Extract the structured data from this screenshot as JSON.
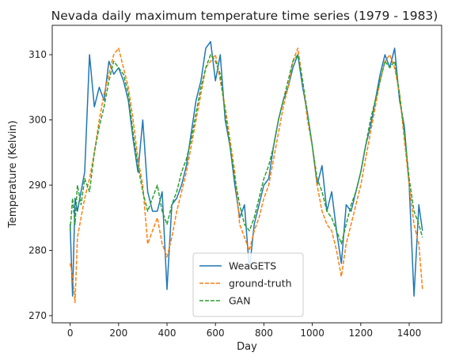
{
  "chart_data": {
    "type": "line",
    "title": "Nevada daily maximum temperature time series (1979 - 1983)",
    "xlabel": "Day",
    "ylabel": "Temperature (Kelvin)",
    "xlim": [
      -74,
      1534
    ],
    "ylim": [
      268.9,
      314.5
    ],
    "x_ticks": [
      0,
      200,
      400,
      600,
      800,
      1000,
      1200,
      1400
    ],
    "y_ticks": [
      270,
      280,
      290,
      300,
      310
    ],
    "grid": false,
    "legend_position": "lower-center",
    "series": [
      {
        "name": "WeaGETS",
        "color": "#1f77b4",
        "style": "solid",
        "x": [
          0,
          10,
          20,
          30,
          45,
          60,
          80,
          100,
          120,
          140,
          160,
          180,
          200,
          220,
          240,
          260,
          280,
          300,
          320,
          340,
          360,
          380,
          400,
          420,
          440,
          460,
          480,
          500,
          520,
          540,
          560,
          580,
          600,
          620,
          640,
          660,
          680,
          700,
          720,
          740,
          760,
          780,
          800,
          820,
          840,
          860,
          880,
          900,
          920,
          940,
          960,
          980,
          1000,
          1020,
          1040,
          1060,
          1080,
          1100,
          1120,
          1140,
          1160,
          1180,
          1200,
          1220,
          1240,
          1260,
          1280,
          1300,
          1320,
          1340,
          1360,
          1380,
          1400,
          1420,
          1440,
          1455
        ],
        "values": [
          284,
          273,
          288,
          286,
          289,
          292,
          310,
          302,
          305,
          303,
          309,
          307,
          308,
          306,
          303,
          297,
          292,
          300,
          289,
          286,
          286,
          289,
          274,
          287,
          288,
          290,
          293,
          298,
          303,
          306,
          311,
          312,
          306,
          310,
          300,
          296,
          290,
          285,
          287,
          277,
          284,
          287,
          290,
          291,
          296,
          300,
          303,
          305,
          308,
          310,
          305,
          301,
          296,
          290,
          293,
          286,
          289,
          283,
          278,
          287,
          286,
          289,
          292,
          296,
          299,
          303,
          307,
          310,
          308,
          311,
          303,
          299,
          290,
          273,
          287,
          283
        ]
      },
      {
        "name": "ground-truth",
        "color": "#ff7f0e",
        "style": "dashed",
        "x": [
          0,
          10,
          20,
          30,
          45,
          60,
          80,
          100,
          120,
          140,
          160,
          180,
          200,
          220,
          240,
          260,
          280,
          300,
          320,
          340,
          360,
          380,
          400,
          420,
          440,
          460,
          480,
          500,
          520,
          540,
          560,
          580,
          600,
          620,
          640,
          660,
          680,
          700,
          720,
          740,
          760,
          780,
          800,
          820,
          840,
          860,
          880,
          900,
          920,
          940,
          960,
          980,
          1000,
          1020,
          1040,
          1060,
          1080,
          1100,
          1120,
          1140,
          1160,
          1180,
          1200,
          1220,
          1240,
          1260,
          1280,
          1300,
          1320,
          1340,
          1360,
          1380,
          1400,
          1420,
          1440,
          1455
        ],
        "values": [
          278,
          276,
          272,
          282,
          285,
          288,
          291,
          295,
          300,
          304,
          307,
          310,
          311,
          308,
          305,
          300,
          294,
          290,
          281,
          283,
          285,
          281,
          279,
          282,
          286,
          289,
          292,
          296,
          300,
          304,
          308,
          309,
          310,
          306,
          302,
          297,
          292,
          284,
          282,
          280,
          283,
          285,
          288,
          290,
          294,
          298,
          302,
          305,
          309,
          311,
          306,
          300,
          296,
          290,
          286,
          284,
          283,
          280,
          276,
          281,
          284,
          287,
          290,
          294,
          298,
          302,
          306,
          309,
          310,
          308,
          304,
          297,
          290,
          284,
          281,
          274
        ]
      },
      {
        "name": "GAN",
        "color": "#2ca02c",
        "style": "dashed",
        "x": [
          0,
          10,
          20,
          30,
          45,
          60,
          80,
          100,
          120,
          140,
          160,
          180,
          200,
          220,
          240,
          260,
          280,
          300,
          320,
          340,
          360,
          380,
          400,
          420,
          440,
          460,
          480,
          500,
          520,
          540,
          560,
          580,
          600,
          620,
          640,
          660,
          680,
          700,
          720,
          740,
          760,
          780,
          800,
          820,
          840,
          860,
          880,
          900,
          920,
          940,
          960,
          980,
          1000,
          1020,
          1040,
          1060,
          1080,
          1100,
          1120,
          1140,
          1160,
          1180,
          1200,
          1220,
          1240,
          1260,
          1280,
          1300,
          1320,
          1340,
          1360,
          1380,
          1400,
          1420,
          1440,
          1455
        ],
        "values": [
          283,
          288,
          284,
          290,
          287,
          291,
          289,
          295,
          299,
          302,
          306,
          309,
          308,
          307,
          304,
          298,
          293,
          289,
          286,
          288,
          290,
          286,
          284,
          287,
          289,
          292,
          294,
          297,
          301,
          305,
          308,
          310,
          309,
          307,
          301,
          296,
          291,
          287,
          284,
          283,
          285,
          288,
          291,
          293,
          296,
          300,
          303,
          306,
          309,
          310,
          306,
          301,
          296,
          291,
          289,
          286,
          285,
          283,
          281,
          284,
          287,
          289,
          292,
          296,
          300,
          303,
          306,
          309,
          308,
          309,
          304,
          298,
          291,
          286,
          284,
          282
        ]
      }
    ]
  }
}
